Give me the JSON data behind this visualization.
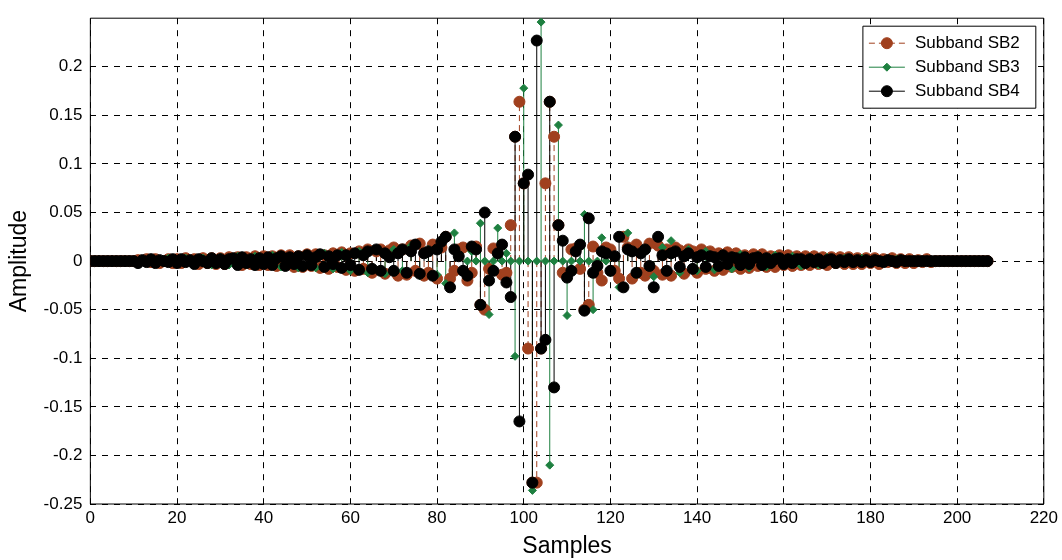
{
  "chart_data": {
    "type": "lollipop",
    "xlabel": "Samples",
    "ylabel": "Amplitude",
    "x": [
      0,
      1,
      2,
      3,
      4,
      5,
      6,
      7,
      8,
      9,
      10,
      11,
      12,
      13,
      14,
      15,
      16,
      17,
      18,
      19,
      20,
      21,
      22,
      23,
      24,
      25,
      26,
      27,
      28,
      29,
      30,
      31,
      32,
      33,
      34,
      35,
      36,
      37,
      38,
      39,
      40,
      41,
      42,
      43,
      44,
      45,
      46,
      47,
      48,
      49,
      50,
      51,
      52,
      53,
      54,
      55,
      56,
      57,
      58,
      59,
      60,
      61,
      62,
      63,
      64,
      65,
      66,
      67,
      68,
      69,
      70,
      71,
      72,
      73,
      74,
      75,
      76,
      77,
      78,
      79,
      80,
      81,
      82,
      83,
      84,
      85,
      86,
      87,
      88,
      89,
      90,
      91,
      92,
      93,
      94,
      95,
      96,
      97,
      98,
      99,
      100,
      101,
      102,
      103,
      104,
      105,
      106,
      107,
      108,
      109,
      110,
      111,
      112,
      113,
      114,
      115,
      116,
      117,
      118,
      119,
      120,
      121,
      122,
      123,
      124,
      125,
      126,
      127,
      128,
      129,
      130,
      131,
      132,
      133,
      134,
      135,
      136,
      137,
      138,
      139,
      140,
      141,
      142,
      143,
      144,
      145,
      146,
      147,
      148,
      149,
      150,
      151,
      152,
      153,
      154,
      155,
      156,
      157,
      158,
      159,
      160,
      161,
      162,
      163,
      164,
      165,
      166,
      167,
      168,
      169,
      170,
      171,
      172,
      173,
      174,
      175,
      176,
      177,
      178,
      179,
      180,
      181,
      182,
      183,
      184,
      185,
      186,
      187,
      188,
      189,
      190,
      191,
      192,
      193,
      194,
      195,
      196,
      197,
      198,
      199,
      200,
      201,
      202,
      203,
      204,
      205,
      206,
      207
    ],
    "series": [
      {
        "name": "Subband SB2",
        "color": "#a0401e",
        "marker": "circle",
        "line_style": "dashed",
        "values": [
          0,
          0,
          0,
          0,
          0,
          0,
          0,
          0,
          0,
          0,
          0,
          0.001,
          null,
          0.002,
          -0.001,
          0.002,
          -0.002,
          null,
          0.002,
          -0.002,
          0.002,
          -0.002,
          0.003,
          null,
          0.002,
          -0.003,
          0.003,
          -0.002,
          0.003,
          -0.003,
          0.003,
          -0.003,
          0.004,
          null,
          0.004,
          -0.004,
          0.004,
          -0.003,
          0.005,
          -0.004,
          0.005,
          -0.004,
          0.005,
          -0.005,
          0.006,
          null,
          0.006,
          -0.006,
          0.005,
          -0.006,
          0.007,
          -0.005,
          0.007,
          -0.007,
          0.006,
          -0.008,
          0.008,
          -0.006,
          0.009,
          -0.009,
          0.008,
          -0.01,
          0.01,
          -0.008,
          0.012,
          -0.012,
          0.01,
          0.012,
          -0.013,
          0.011,
          0.014,
          -0.015,
          0.012,
          -0.014,
          0.016,
          -0.01,
          0.018,
          -0.015,
          -0.012,
          0.017,
          -0.018,
          0.014,
          0.025,
          -0.018,
          -0.01,
          0.012,
          0.014,
          -0.02,
          -0.012,
          0.015,
          -0.045,
          -0.05,
          -0.008,
          0.013,
          null,
          -0.014,
          -0.012,
          0.037,
          0.128,
          0.164,
          0.08,
          -0.09,
          -0.228,
          -0.228,
          -0.09,
          0.08,
          0.164,
          0.128,
          0.037,
          -0.012,
          null,
          0.012,
          0.013,
          -0.008,
          -0.05,
          -0.045,
          0.015,
          -0.012,
          -0.02,
          0.014,
          0.012,
          -0.01,
          -0.018,
          0.025,
          0.014,
          -0.018,
          0.017,
          -0.012,
          -0.015,
          0.018,
          -0.01,
          0.016,
          -0.014,
          0.012,
          -0.015,
          0.014,
          0.011,
          -0.013,
          0.012,
          0.01,
          -0.012,
          0.012,
          -0.008,
          0.01,
          -0.01,
          0.008,
          -0.009,
          0.009,
          -0.006,
          0.008,
          -0.008,
          0.006,
          -0.007,
          0.007,
          -0.005,
          0.007,
          -0.006,
          0.005,
          -0.006,
          0.006,
          -0.004,
          0.006,
          -0.005,
          0.005,
          -0.004,
          0.005,
          -0.004,
          0.005,
          -0.003,
          0.004,
          -0.004,
          0.004,
          -0.002,
          0.004,
          -0.003,
          0.004,
          -0.003,
          0.003,
          -0.003,
          0.003,
          -0.002,
          0.003,
          -0.003,
          0.002,
          -0.001,
          0.003,
          -0.002,
          0.002,
          -0.002,
          0.002,
          -0.002,
          0.001,
          -0.001,
          0.002,
          -0.001,
          0,
          0,
          0,
          0,
          0,
          0,
          0,
          0,
          0,
          0,
          0,
          0,
          0
        ]
      },
      {
        "name": "Subband SB3",
        "color": "#1e8040",
        "marker": "diamond",
        "line_style": "solid",
        "values": [
          null,
          null,
          null,
          null,
          null,
          null,
          null,
          null,
          null,
          null,
          null,
          null,
          null,
          null,
          null,
          null,
          null,
          null,
          0.003,
          null,
          null,
          null,
          0.003,
          null,
          null,
          null,
          0.003,
          null,
          -0.004,
          null,
          0.004,
          null,
          -0.004,
          null,
          0.005,
          null,
          -0.004,
          null,
          0.005,
          null,
          null,
          null,
          0.006,
          null,
          -0.006,
          null,
          null,
          null,
          -0.007,
          null,
          null,
          null,
          -0.007,
          null,
          0.008,
          null,
          -0.008,
          null,
          0.009,
          null,
          -0.01,
          null,
          0.01,
          null,
          -0.012,
          null,
          null,
          null,
          -0.013,
          null,
          0.012,
          null,
          -0.01,
          null,
          0.016,
          null,
          -0.015,
          null,
          0.012,
          null,
          -0.014,
          null,
          -0.023,
          null,
          0.029,
          null,
          null,
          0,
          0.01,
          0,
          0.039,
          0,
          -0.055,
          0,
          0.034,
          0,
          0.008,
          0,
          -0.098,
          0,
          0.178,
          0,
          -0.236,
          0,
          0.246,
          0,
          -0.21,
          0,
          0.14,
          0,
          -0.056,
          0,
          null,
          0,
          0.048,
          0,
          -0.05,
          0,
          0.024,
          0,
          -0.012,
          null,
          -0.027,
          null,
          0.029,
          null,
          -0.014,
          null,
          null,
          null,
          -0.016,
          null,
          0.014,
          null,
          0.021,
          null,
          -0.012,
          null,
          0.012,
          null,
          -0.01,
          null,
          0.01,
          null,
          -0.009,
          null,
          null,
          null,
          -0.008,
          null,
          0.007,
          null,
          -0.007,
          null,
          0.006,
          null,
          -0.006,
          null,
          0.006,
          null,
          null,
          null,
          0.005,
          null,
          -0.005,
          null,
          0.004,
          null,
          -0.004,
          null,
          0.004,
          null,
          null,
          null,
          0.003,
          null,
          null,
          null,
          0.003,
          null,
          null,
          null,
          null,
          null,
          null,
          null,
          0.002,
          null,
          null,
          null,
          null,
          null,
          null,
          null,
          null,
          null,
          null,
          null,
          null,
          null,
          null,
          null,
          null,
          null,
          null,
          null,
          null,
          null
        ]
      },
      {
        "name": "Subband SB4",
        "color": "#000000",
        "marker": "circle",
        "line_style": "solid",
        "values": [
          0,
          0,
          0,
          0,
          0,
          0,
          0,
          0,
          0,
          0,
          0,
          -0.002,
          0.001,
          -0.001,
          0.002,
          -0.002,
          0.001,
          0,
          -0.001,
          0.002,
          -0.002,
          0.002,
          -0.001,
          0.001,
          -0.003,
          0.002,
          0,
          -0.002,
          0.003,
          -0.002,
          0.002,
          -0.003,
          0.002,
          0.003,
          -0.004,
          0.004,
          -0.002,
          0.002,
          -0.004,
          0.003,
          -0.003,
          0.004,
          -0.004,
          0.003,
          0.005,
          -0.005,
          0.004,
          -0.003,
          0.005,
          -0.005,
          0.006,
          -0.004,
          0.004,
          0.007,
          -0.006,
          0.005,
          -0.003,
          0.006,
          -0.007,
          0.006,
          -0.004,
          0.008,
          -0.009,
          0.006,
          0.01,
          -0.008,
          0.012,
          -0.01,
          0.008,
          0.004,
          -0.01,
          0.008,
          0.012,
          -0.012,
          0.01,
          0.017,
          -0.013,
          0.008,
          0.01,
          -0.015,
          0.012,
          0.02,
          0.025,
          -0.027,
          0.012,
          0.005,
          -0.01,
          -0.015,
          0.015,
          0.012,
          -0.045,
          0.05,
          -0.02,
          -0.01,
          0.008,
          0.017,
          -0.022,
          -0.037,
          0.128,
          -0.165,
          0.08,
          0.089,
          -0.228,
          0.227,
          -0.09,
          -0.081,
          0.164,
          -0.13,
          0.037,
          0.021,
          -0.017,
          -0.01,
          0.01,
          0.017,
          -0.051,
          0.044,
          -0.012,
          -0.005,
          0.01,
          0.008,
          -0.01,
          0.005,
          0.025,
          -0.027,
          0.012,
          0.01,
          -0.012,
          0.008,
          0.012,
          -0.005,
          -0.027,
          0.025,
          0.006,
          -0.01,
          0.008,
          0.01,
          -0.006,
          0.005,
          0.008,
          -0.008,
          0.004,
          0.006,
          -0.006,
          0.005,
          0.004,
          -0.005,
          0.006,
          -0.003,
          0.004,
          0.003,
          -0.004,
          0.004,
          -0.003,
          0.003,
          0.004,
          -0.004,
          0.003,
          -0.002,
          0.002,
          0.003,
          -0.003,
          0.002,
          -0.002,
          0.002,
          0.002,
          -0.002,
          0.002,
          -0.001,
          0.002,
          -0.002,
          0.001,
          0.002,
          -0.002,
          0.001,
          -0.001,
          0.002,
          -0.001,
          0.001,
          -0.001,
          0.001,
          -0.001,
          0.001,
          0,
          -0.001,
          0.001,
          0,
          -0.001,
          0.001,
          0,
          0,
          0,
          0,
          0,
          0,
          0,
          0,
          0,
          0,
          0,
          0,
          0,
          0,
          0,
          0,
          0,
          0,
          0,
          0
        ]
      }
    ],
    "xlim": [
      0,
      220
    ],
    "xticks": [
      0,
      20,
      40,
      60,
      80,
      100,
      120,
      140,
      160,
      180,
      200,
      220
    ],
    "ylim": [
      -0.25,
      0.25
    ],
    "yticks": [
      -0.25,
      -0.2,
      -0.15,
      -0.1,
      -0.05,
      0,
      0.05,
      0.1,
      0.15,
      0.2
    ],
    "grid": true,
    "legend": "top right"
  }
}
